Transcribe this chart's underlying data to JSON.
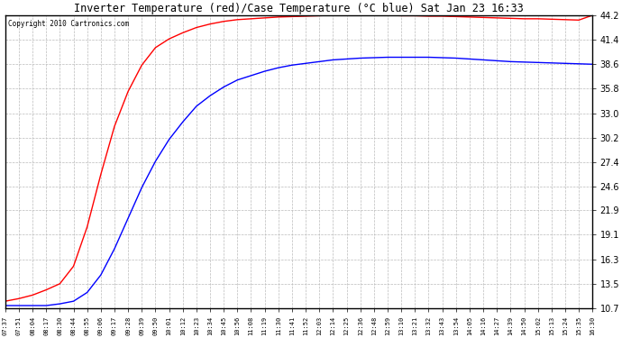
{
  "title": "Inverter Temperature (red)/Case Temperature (°C blue) Sat Jan 23 16:33",
  "copyright": "Copyright 2010 Cartronics.com",
  "yticks": [
    10.7,
    13.5,
    16.3,
    19.1,
    21.9,
    24.6,
    27.4,
    30.2,
    33.0,
    35.8,
    38.6,
    41.4,
    44.2
  ],
  "ymin": 10.7,
  "ymax": 44.2,
  "background_color": "#ffffff",
  "grid_color": "#bbbbbb",
  "xtick_labels": [
    "07:37",
    "07:51",
    "08:04",
    "08:17",
    "08:30",
    "08:44",
    "08:55",
    "09:06",
    "09:17",
    "09:28",
    "09:39",
    "09:50",
    "10:01",
    "10:12",
    "10:23",
    "10:34",
    "10:45",
    "10:56",
    "11:08",
    "11:19",
    "11:30",
    "11:41",
    "11:52",
    "12:03",
    "12:14",
    "12:25",
    "12:36",
    "12:48",
    "12:59",
    "13:10",
    "13:21",
    "13:32",
    "13:43",
    "13:54",
    "14:05",
    "14:16",
    "14:27",
    "14:39",
    "14:50",
    "15:02",
    "15:13",
    "15:24",
    "15:35",
    "16:30"
  ],
  "red_curve_y": [
    11.5,
    11.8,
    12.2,
    12.8,
    13.5,
    15.5,
    20.0,
    26.0,
    31.5,
    35.5,
    38.5,
    40.5,
    41.5,
    42.2,
    42.8,
    43.2,
    43.5,
    43.7,
    43.8,
    43.9,
    44.0,
    44.05,
    44.1,
    44.15,
    44.2,
    44.2,
    44.2,
    44.2,
    44.2,
    44.15,
    44.15,
    44.1,
    44.1,
    44.05,
    44.0,
    43.95,
    43.9,
    43.85,
    43.8,
    43.8,
    43.75,
    43.7,
    43.65,
    44.2
  ],
  "blue_curve_y": [
    11.0,
    11.0,
    11.0,
    11.0,
    11.2,
    11.5,
    12.5,
    14.5,
    17.5,
    21.0,
    24.5,
    27.5,
    30.0,
    32.0,
    33.8,
    35.0,
    36.0,
    36.8,
    37.3,
    37.8,
    38.2,
    38.5,
    38.7,
    38.9,
    39.1,
    39.2,
    39.3,
    39.35,
    39.4,
    39.4,
    39.4,
    39.4,
    39.35,
    39.3,
    39.2,
    39.1,
    39.0,
    38.9,
    38.85,
    38.8,
    38.75,
    38.7,
    38.65,
    38.6
  ]
}
